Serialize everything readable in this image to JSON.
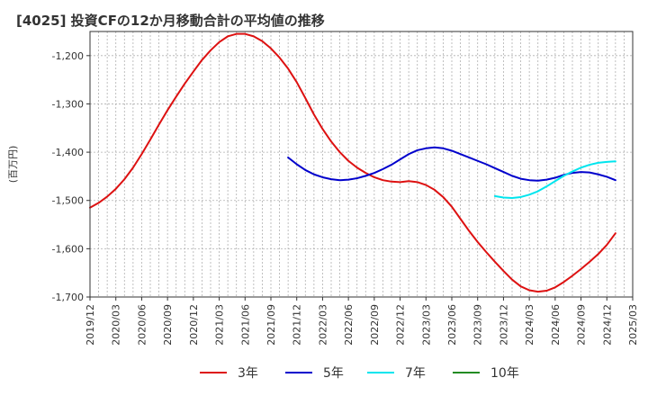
{
  "chart_data": {
    "type": "line",
    "title": "[4025]  投資CFの12か月移動合計の平均値の推移",
    "ylabel": "(百万円)",
    "xlabel": "",
    "ylim": [
      -1700,
      -1150
    ],
    "yticks": [
      -1200,
      -1300,
      -1400,
      -1500,
      -1600,
      -1700
    ],
    "ytick_labels": [
      "-1,200",
      "-1,300",
      "-1,400",
      "-1,500",
      "-1,600",
      "-1,700"
    ],
    "xticks": [
      "2019-12",
      "2020-03",
      "2020-06",
      "2020-09",
      "2020-12",
      "2021-03",
      "2021-06",
      "2021-09",
      "2021-12",
      "2022-03",
      "2022-06",
      "2022-09",
      "2022-12",
      "2023-03",
      "2023-06",
      "2023-09",
      "2023-12",
      "2024-03",
      "2024-06",
      "2024-09",
      "2024-12",
      "2025-03"
    ],
    "xtick_labels": [
      "2019/12",
      "2020/03",
      "2020/06",
      "2020/09",
      "2020/12",
      "2021/03",
      "2021/06",
      "2021/09",
      "2021/12",
      "2022/03",
      "2022/06",
      "2022/09",
      "2022/12",
      "2023/03",
      "2023/06",
      "2023/09",
      "2023/12",
      "2024/03",
      "2024/06",
      "2024/09",
      "2024/12",
      "2025/03"
    ],
    "grid": true,
    "legend_position": "bottom",
    "series": [
      {
        "name": "3年",
        "color": "#dd1111",
        "points": [
          [
            "2019-12",
            -1515
          ],
          [
            "2020-01",
            -1505
          ],
          [
            "2020-02",
            -1492
          ],
          [
            "2020-03",
            -1476
          ],
          [
            "2020-04",
            -1456
          ],
          [
            "2020-05",
            -1432
          ],
          [
            "2020-06",
            -1404
          ],
          [
            "2020-07",
            -1374
          ],
          [
            "2020-08",
            -1343
          ],
          [
            "2020-09",
            -1313
          ],
          [
            "2020-10",
            -1285
          ],
          [
            "2020-11",
            -1258
          ],
          [
            "2020-12",
            -1233
          ],
          [
            "2021-01",
            -1209
          ],
          [
            "2021-02",
            -1189
          ],
          [
            "2021-03",
            -1172
          ],
          [
            "2021-04",
            -1160
          ],
          [
            "2021-05",
            -1155
          ],
          [
            "2021-06",
            -1155
          ],
          [
            "2021-07",
            -1160
          ],
          [
            "2021-08",
            -1170
          ],
          [
            "2021-09",
            -1185
          ],
          [
            "2021-10",
            -1204
          ],
          [
            "2021-11",
            -1227
          ],
          [
            "2021-12",
            -1255
          ],
          [
            "2022-01",
            -1288
          ],
          [
            "2022-02",
            -1322
          ],
          [
            "2022-03",
            -1352
          ],
          [
            "2022-04",
            -1378
          ],
          [
            "2022-05",
            -1400
          ],
          [
            "2022-06",
            -1418
          ],
          [
            "2022-07",
            -1432
          ],
          [
            "2022-08",
            -1443
          ],
          [
            "2022-09",
            -1452
          ],
          [
            "2022-10",
            -1458
          ],
          [
            "2022-11",
            -1461
          ],
          [
            "2022-12",
            -1462
          ],
          [
            "2023-01",
            -1460
          ],
          [
            "2023-02",
            -1462
          ],
          [
            "2023-03",
            -1468
          ],
          [
            "2023-04",
            -1478
          ],
          [
            "2023-05",
            -1493
          ],
          [
            "2023-06",
            -1513
          ],
          [
            "2023-07",
            -1538
          ],
          [
            "2023-08",
            -1563
          ],
          [
            "2023-09",
            -1586
          ],
          [
            "2023-10",
            -1607
          ],
          [
            "2023-11",
            -1627
          ],
          [
            "2023-12",
            -1646
          ],
          [
            "2024-01",
            -1664
          ],
          [
            "2024-02",
            -1678
          ],
          [
            "2024-03",
            -1686
          ],
          [
            "2024-04",
            -1689
          ],
          [
            "2024-05",
            -1687
          ],
          [
            "2024-06",
            -1680
          ],
          [
            "2024-07",
            -1669
          ],
          [
            "2024-08",
            -1656
          ],
          [
            "2024-09",
            -1642
          ],
          [
            "2024-10",
            -1627
          ],
          [
            "2024-11",
            -1611
          ],
          [
            "2024-12",
            -1592
          ],
          [
            "2025-01",
            -1568
          ]
        ]
      },
      {
        "name": "5年",
        "color": "#0000cc",
        "points": [
          [
            "2021-11",
            -1411
          ],
          [
            "2021-12",
            -1425
          ],
          [
            "2022-01",
            -1437
          ],
          [
            "2022-02",
            -1446
          ],
          [
            "2022-03",
            -1452
          ],
          [
            "2022-04",
            -1456
          ],
          [
            "2022-05",
            -1458
          ],
          [
            "2022-06",
            -1457
          ],
          [
            "2022-07",
            -1454
          ],
          [
            "2022-08",
            -1449
          ],
          [
            "2022-09",
            -1443
          ],
          [
            "2022-10",
            -1435
          ],
          [
            "2022-11",
            -1426
          ],
          [
            "2022-12",
            -1415
          ],
          [
            "2023-01",
            -1404
          ],
          [
            "2023-02",
            -1396
          ],
          [
            "2023-03",
            -1392
          ],
          [
            "2023-04",
            -1390
          ],
          [
            "2023-05",
            -1392
          ],
          [
            "2023-06",
            -1397
          ],
          [
            "2023-07",
            -1404
          ],
          [
            "2023-08",
            -1411
          ],
          [
            "2023-09",
            -1418
          ],
          [
            "2023-10",
            -1425
          ],
          [
            "2023-11",
            -1433
          ],
          [
            "2023-12",
            -1441
          ],
          [
            "2024-01",
            -1449
          ],
          [
            "2024-02",
            -1455
          ],
          [
            "2024-03",
            -1458
          ],
          [
            "2024-04",
            -1459
          ],
          [
            "2024-05",
            -1457
          ],
          [
            "2024-06",
            -1453
          ],
          [
            "2024-07",
            -1447
          ],
          [
            "2024-08",
            -1443
          ],
          [
            "2024-09",
            -1441
          ],
          [
            "2024-10",
            -1442
          ],
          [
            "2024-11",
            -1446
          ],
          [
            "2024-12",
            -1451
          ],
          [
            "2025-01",
            -1458
          ]
        ]
      },
      {
        "name": "7年",
        "color": "#00e5ee",
        "points": [
          [
            "2023-11",
            -1491
          ],
          [
            "2023-12",
            -1494
          ],
          [
            "2024-01",
            -1495
          ],
          [
            "2024-02",
            -1493
          ],
          [
            "2024-03",
            -1488
          ],
          [
            "2024-04",
            -1481
          ],
          [
            "2024-05",
            -1471
          ],
          [
            "2024-06",
            -1460
          ],
          [
            "2024-07",
            -1449
          ],
          [
            "2024-08",
            -1440
          ],
          [
            "2024-09",
            -1432
          ],
          [
            "2024-10",
            -1426
          ],
          [
            "2024-11",
            -1422
          ],
          [
            "2024-12",
            -1420
          ],
          [
            "2025-01",
            -1419
          ]
        ]
      },
      {
        "name": "10年",
        "color": "#228b22",
        "points": []
      }
    ]
  }
}
